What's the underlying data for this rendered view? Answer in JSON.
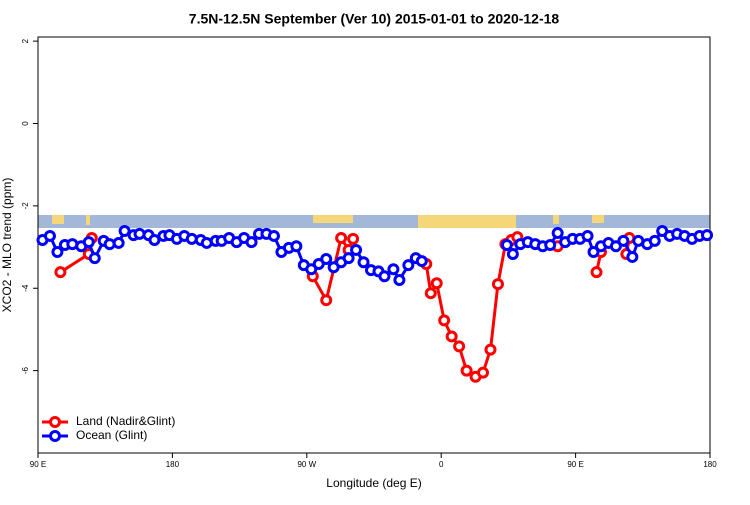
{
  "chart_data": {
    "type": "line",
    "title": "7.5N-12.5N September (Ver 10)   2015-01-01 to 2020-12-18",
    "x_label": "Longitude (deg E)",
    "y_label": "XCO2 - MLO trend (ppm)",
    "xlim": [
      90,
      540
    ],
    "xticks": [
      {
        "value": 90,
        "label": "90 E"
      },
      {
        "value": 180,
        "label": "180"
      },
      {
        "value": 270,
        "label": "90 W"
      },
      {
        "value": 360,
        "label": "0"
      },
      {
        "value": 450,
        "label": "90 E"
      },
      {
        "value": 540,
        "label": "180"
      }
    ],
    "ylim": [
      -8,
      2.1
    ],
    "yticks": [
      -6,
      -4,
      -2,
      0,
      2
    ],
    "legend": "bottom-left",
    "series": [
      {
        "name": "Land (Nadir&Glint)",
        "color": "#ff0000",
        "x": [
          105,
          124,
          126,
          200,
          274,
          283,
          293,
          298,
          301,
          375,
          350,
          353,
          357,
          362,
          367,
          372,
          377,
          383,
          388,
          393,
          398,
          403,
          407,
          411,
          430,
          438,
          450,
          464,
          467,
          480,
          484,
          486
        ],
        "values": [
          -3.61,
          -3.17,
          -2.78,
          null,
          -3.71,
          -4.29,
          -2.78,
          -3.07,
          -2.8,
          null,
          -3.41,
          -4.12,
          -3.88,
          -4.78,
          -5.17,
          -5.41,
          -6.0,
          -6.15,
          -6.05,
          -5.49,
          -3.9,
          -2.93,
          -2.83,
          -2.76,
          null,
          -2.98,
          null,
          -3.61,
          -3.12,
          null,
          -3.17,
          -2.78
        ]
      },
      {
        "name": "Ocean (Glint)",
        "color": "#0000ff",
        "x": [
          93,
          98,
          103,
          108,
          113,
          119,
          124,
          128,
          134,
          138,
          144,
          148,
          154,
          158,
          164,
          168,
          174,
          178,
          183,
          188,
          193,
          199,
          203,
          209,
          213,
          218,
          223,
          228,
          233,
          238,
          243,
          248,
          253,
          258,
          263,
          268,
          273,
          278,
          283,
          288,
          293,
          298,
          303,
          308,
          313,
          318,
          322,
          328,
          332,
          338,
          343,
          347,
          375,
          404,
          408,
          413,
          418,
          423,
          428,
          433,
          438,
          443,
          448,
          453,
          458,
          462,
          467,
          472,
          477,
          482,
          488,
          492,
          498,
          503,
          508,
          513,
          518,
          523,
          528,
          533,
          538
        ],
        "values": [
          -2.83,
          -2.73,
          -3.12,
          -2.95,
          -2.93,
          -2.98,
          -2.88,
          -3.27,
          -2.85,
          -2.93,
          -2.9,
          -2.61,
          -2.71,
          -2.68,
          -2.71,
          -2.83,
          -2.73,
          -2.71,
          -2.8,
          -2.73,
          -2.8,
          -2.83,
          -2.9,
          -2.85,
          -2.85,
          -2.78,
          -2.88,
          -2.78,
          -2.88,
          -2.68,
          -2.68,
          -2.73,
          -3.12,
          -3.02,
          -2.98,
          -3.44,
          -3.54,
          -3.41,
          -3.29,
          -3.49,
          -3.37,
          -3.27,
          -3.07,
          -3.37,
          -3.56,
          -3.59,
          -3.71,
          -3.54,
          -3.8,
          -3.44,
          -3.27,
          -3.34,
          null,
          -2.95,
          -3.17,
          -2.93,
          -2.88,
          -2.93,
          -2.98,
          -2.95,
          -2.66,
          -2.88,
          -2.8,
          -2.8,
          -2.73,
          -3.12,
          -2.98,
          -2.9,
          -2.98,
          -2.85,
          -3.24,
          -2.85,
          -2.93,
          -2.85,
          -2.61,
          -2.73,
          -2.68,
          -2.73,
          -2.8,
          -2.73,
          -2.71
        ]
      }
    ]
  }
}
